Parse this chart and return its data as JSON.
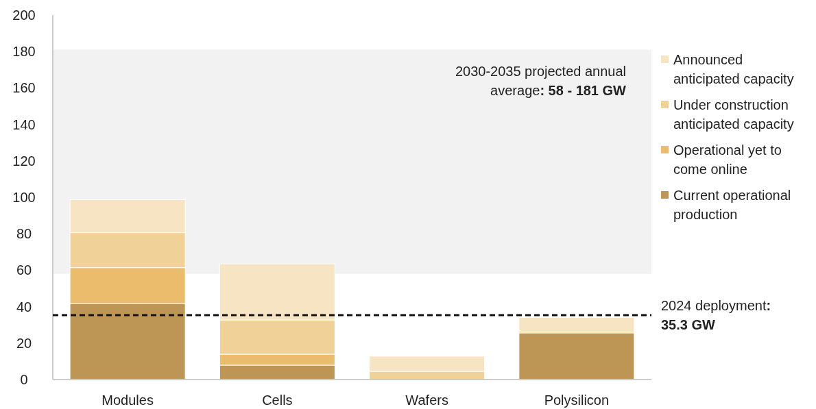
{
  "chart_data": {
    "type": "bar",
    "stacked": true,
    "categories": [
      "Modules",
      "Cells",
      "Wafers",
      "Polysilicon"
    ],
    "series": [
      {
        "name": "Current operational production",
        "color": "#bd9656",
        "values": [
          41.7,
          7.9,
          null,
          25.6
        ]
      },
      {
        "name": "Operational yet to come online",
        "color": "#ebbc6b",
        "values": [
          19.7,
          6,
          null,
          null
        ]
      },
      {
        "name": "Under construction anticipated capacity",
        "color": "#f0d198",
        "values": [
          19.2,
          18.8,
          4.5,
          0.9
        ]
      },
      {
        "name": "Announced anticipated capacity",
        "color": "#f7e4c2",
        "values": [
          18.1,
          30.8,
          8.3,
          7.6
        ]
      }
    ],
    "ylim": [
      0,
      200
    ],
    "yticks": [
      0,
      20,
      40,
      60,
      80,
      100,
      120,
      140,
      160,
      180,
      200
    ],
    "grid": false,
    "legend": "right",
    "ref_lines": [
      {
        "axis": "y",
        "value": 35.3,
        "label": "2024 deployment: 35.3 GW",
        "color": "#111111",
        "line_style": "dashed"
      }
    ],
    "bands": [
      {
        "axis": "y",
        "from": 58,
        "to": 181,
        "label": "2030-2035 projected annual average: 58 - 181 GW",
        "color": "#f2f2f2"
      }
    ]
  }
}
